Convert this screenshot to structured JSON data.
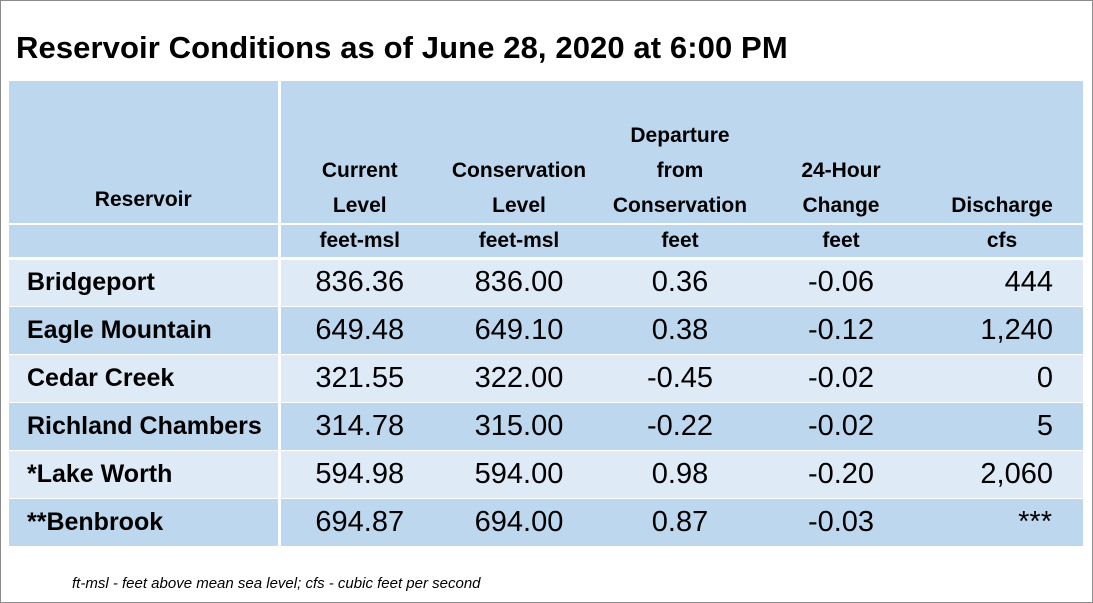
{
  "title": "Reservoir Conditions as of June 28, 2020 at 6:00 PM",
  "table": {
    "columns": [
      {
        "key": "reservoir",
        "header_lines": [
          "Reservoir"
        ],
        "unit": ""
      },
      {
        "key": "current_level",
        "header_lines": [
          "Current",
          "Level"
        ],
        "unit": "feet-msl"
      },
      {
        "key": "conservation_level",
        "header_lines": [
          "Conservation",
          "Level"
        ],
        "unit": "feet-msl"
      },
      {
        "key": "departure",
        "header_lines": [
          "Departure",
          "from",
          "Conservation"
        ],
        "unit": "feet"
      },
      {
        "key": "change_24h",
        "header_lines": [
          "24-Hour",
          "Change"
        ],
        "unit": "feet"
      },
      {
        "key": "discharge",
        "header_lines": [
          "Discharge"
        ],
        "unit": "cfs"
      }
    ],
    "rows": [
      {
        "reservoir": "Bridgeport",
        "current_level": "836.36",
        "conservation_level": "836.00",
        "departure": "0.36",
        "change_24h": "-0.06",
        "discharge": "444"
      },
      {
        "reservoir": "Eagle Mountain",
        "current_level": "649.48",
        "conservation_level": "649.10",
        "departure": "0.38",
        "change_24h": "-0.12",
        "discharge": "1,240"
      },
      {
        "reservoir": "Cedar Creek",
        "current_level": "321.55",
        "conservation_level": "322.00",
        "departure": "-0.45",
        "change_24h": "-0.02",
        "discharge": "0"
      },
      {
        "reservoir": "Richland Chambers",
        "current_level": "314.78",
        "conservation_level": "315.00",
        "departure": "-0.22",
        "change_24h": "-0.02",
        "discharge": "5"
      },
      {
        "reservoir": "*Lake Worth",
        "current_level": "594.98",
        "conservation_level": "594.00",
        "departure": "0.98",
        "change_24h": "-0.20",
        "discharge": "2,060"
      },
      {
        "reservoir": "**Benbrook",
        "current_level": "694.87",
        "conservation_level": "694.00",
        "departure": "0.87",
        "change_24h": "-0.03",
        "discharge": "***"
      }
    ]
  },
  "footnote": "ft-msl - feet above mean sea level; cfs - cubic feet per second",
  "colors": {
    "header_bg": "#bdd7ee",
    "row_light": "#deebf7",
    "row_dark": "#bdd7ee"
  }
}
